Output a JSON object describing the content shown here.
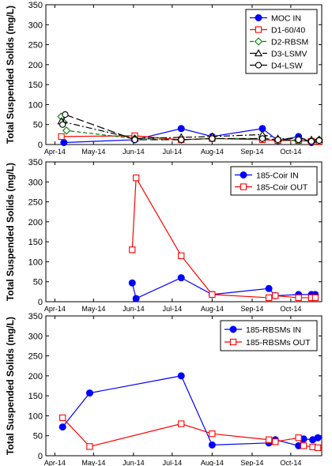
{
  "chart_data": [
    {
      "type": "line",
      "ylabel": "Total Suspended Solids (mg/L)",
      "ylim": [
        0,
        350
      ],
      "yticks": [
        0,
        50,
        100,
        150,
        200,
        250,
        300,
        350
      ],
      "xlim": [
        "2014-03-25",
        "2014-10-25"
      ],
      "xticks": [
        "2014-04-01",
        "2014-05-01",
        "2014-06-01",
        "2014-07-01",
        "2014-08-01",
        "2014-09-01",
        "2014-10-01"
      ],
      "xticklabels": [
        "Apr-14",
        "May-14",
        "Jun-14",
        "Jul-14",
        "Aug-14",
        "Sep-14",
        "Oct-14"
      ],
      "legend_position": "top-right",
      "series": [
        {
          "name": "MOC IN",
          "color": "#0000ff",
          "dash": "solid",
          "marker": "filled-circle",
          "x": [
            "2014-04-08",
            "2014-06-02",
            "2014-07-08",
            "2014-08-01",
            "2014-09-09",
            "2014-09-21",
            "2014-10-07",
            "2014-10-17",
            "2014-10-23"
          ],
          "y": [
            5,
            12,
            40,
            20,
            40,
            10,
            20,
            5,
            10
          ]
        },
        {
          "name": "D1-60/40",
          "color": "#ff0000",
          "dash": "solid",
          "marker": "open-square",
          "x": [
            "2014-04-06",
            "2014-06-02",
            "2014-07-08",
            "2014-08-01",
            "2014-09-09",
            "2014-09-21",
            "2014-10-07",
            "2014-10-17",
            "2014-10-23"
          ],
          "y": [
            20,
            22,
            12,
            15,
            12,
            10,
            10,
            8,
            8
          ]
        },
        {
          "name": "D2-RBSM",
          "color": "#008000",
          "dash": "dash",
          "marker": "open-diamond",
          "x": [
            "2014-04-06",
            "2014-04-08",
            "2014-04-10",
            "2014-06-02",
            "2014-07-08",
            "2014-08-01",
            "2014-09-09",
            "2014-09-21",
            "2014-10-07",
            "2014-10-17",
            "2014-10-23"
          ],
          "y": [
            70,
            55,
            35,
            15,
            12,
            15,
            15,
            12,
            10,
            10,
            12
          ]
        },
        {
          "name": "D3-LSMV",
          "color": "#000000",
          "dash": "dashdot",
          "marker": "open-triangle",
          "x": [
            "2014-04-06",
            "2014-06-02",
            "2014-07-08",
            "2014-08-01",
            "2014-09-09",
            "2014-09-21",
            "2014-10-07",
            "2014-10-17",
            "2014-10-23"
          ],
          "y": [
            58,
            15,
            18,
            20,
            25,
            15,
            15,
            12,
            12
          ]
        },
        {
          "name": "D4-LSW",
          "color": "#000000",
          "dash": "longdash",
          "marker": "open-circle",
          "x": [
            "2014-04-07",
            "2014-04-09",
            "2014-06-02",
            "2014-07-08",
            "2014-08-01",
            "2014-09-09",
            "2014-09-21",
            "2014-10-07",
            "2014-10-17",
            "2014-10-23"
          ],
          "y": [
            50,
            75,
            12,
            12,
            15,
            15,
            12,
            12,
            8,
            10
          ]
        }
      ]
    },
    {
      "type": "line",
      "ylabel": "Total Suspended Solids (mg/L)",
      "ylim": [
        0,
        350
      ],
      "yticks": [
        0,
        50,
        100,
        150,
        200,
        250,
        300,
        350
      ],
      "xlim": [
        "2014-03-25",
        "2014-10-25"
      ],
      "xticks": [
        "2014-04-01",
        "2014-05-01",
        "2014-06-01",
        "2014-07-01",
        "2014-08-01",
        "2014-09-01",
        "2014-10-01"
      ],
      "xticklabels": [
        "Apr-14",
        "May-14",
        "Jun-14",
        "Jul-14",
        "Aug-14",
        "Sep-14",
        "Oct-14"
      ],
      "legend_position": "top-right",
      "series": [
        {
          "name": "185-Coir IN",
          "color": "#0000ff",
          "dash": "solid",
          "marker": "filled-circle",
          "x": [
            "2014-05-31",
            "2014-06-03",
            "2014-07-08",
            "2014-08-01",
            "2014-09-14",
            "2014-09-19",
            "2014-10-07",
            "2014-10-17",
            "2014-10-20"
          ],
          "y": [
            47,
            8,
            60,
            18,
            33,
            15,
            18,
            18,
            18
          ]
        },
        {
          "name": "185-Coir OUT",
          "color": "#ff0000",
          "dash": "solid",
          "marker": "open-square",
          "x": [
            "2014-05-31",
            "2014-06-03",
            "2014-07-08",
            "2014-08-01",
            "2014-09-14",
            "2014-09-19",
            "2014-10-07",
            "2014-10-17",
            "2014-10-20"
          ],
          "y": [
            130,
            310,
            115,
            18,
            10,
            15,
            10,
            10,
            10
          ]
        }
      ]
    },
    {
      "type": "line",
      "ylabel": "Total Suspended Solids (mg/L)",
      "ylim": [
        0,
        350
      ],
      "yticks": [
        0,
        50,
        100,
        150,
        200,
        250,
        300,
        350
      ],
      "xlim": [
        "2014-03-25",
        "2014-10-25"
      ],
      "xticks": [
        "2014-04-01",
        "2014-05-01",
        "2014-06-01",
        "2014-07-01",
        "2014-08-01",
        "2014-09-01",
        "2014-10-01"
      ],
      "xticklabels": [
        "Apr-14",
        "May-14",
        "Jun-14",
        "Jul-14",
        "Aug-14",
        "Sep-14",
        "Oct-14"
      ],
      "legend_position": "top-right",
      "series": [
        {
          "name": "185-RBSMs IN",
          "color": "#0000ff",
          "dash": "solid",
          "marker": "filled-circle",
          "x": [
            "2014-04-07",
            "2014-04-28",
            "2014-07-08",
            "2014-08-01",
            "2014-09-14",
            "2014-09-19",
            "2014-10-07",
            "2014-10-11",
            "2014-10-18",
            "2014-10-22"
          ],
          "y": [
            72,
            157,
            200,
            27,
            32,
            40,
            25,
            42,
            40,
            45
          ]
        },
        {
          "name": "185-RBSMs OUT",
          "color": "#ff0000",
          "dash": "solid",
          "marker": "open-square",
          "x": [
            "2014-04-07",
            "2014-04-28",
            "2014-07-08",
            "2014-08-01",
            "2014-09-14",
            "2014-09-19",
            "2014-10-07",
            "2014-10-11",
            "2014-10-18",
            "2014-10-22"
          ],
          "y": [
            95,
            23,
            80,
            55,
            40,
            35,
            45,
            25,
            22,
            20
          ]
        }
      ]
    }
  ]
}
